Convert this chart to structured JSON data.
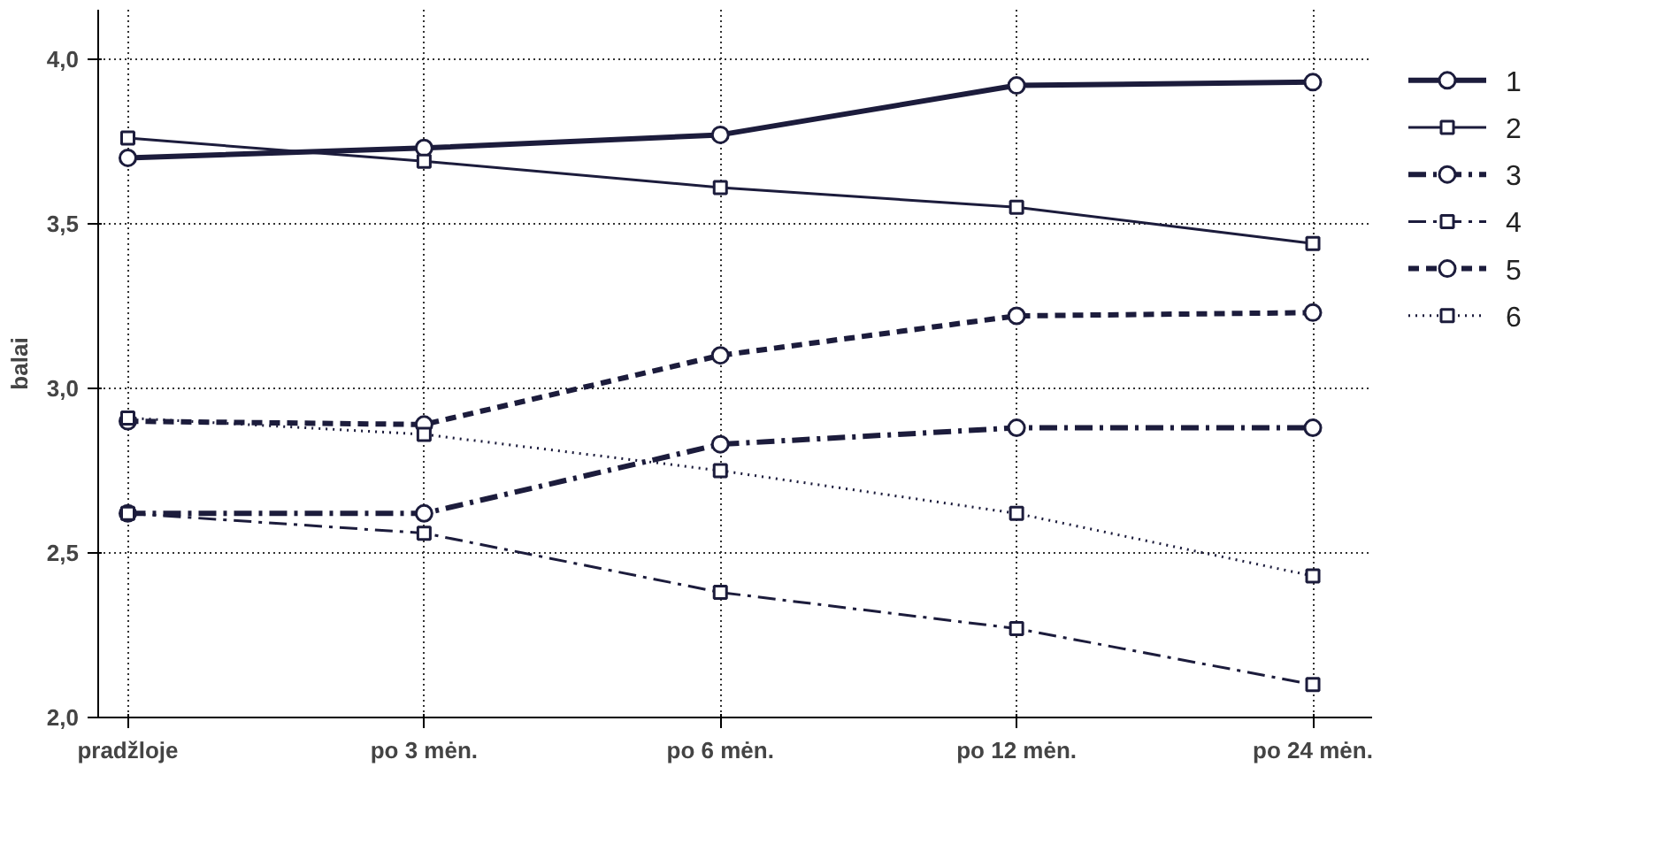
{
  "chart_data": {
    "type": "line",
    "ylabel": "balai",
    "categories": [
      "pradžloje",
      "po 3 mėn.",
      "po 6 mėn.",
      "po 12 mėn.",
      "po 24 mėn."
    ],
    "ylim": [
      2.0,
      4.15
    ],
    "yticks": [
      {
        "value": 2.0,
        "label": "2,0"
      },
      {
        "value": 2.5,
        "label": "2,5"
      },
      {
        "value": 3.0,
        "label": "3,0"
      },
      {
        "value": 3.5,
        "label": "3,5"
      },
      {
        "value": 4.0,
        "label": "4,0"
      }
    ],
    "grid": true,
    "legend": "right",
    "series": [
      {
        "name": "1",
        "color": "#1c1c3c",
        "marker": "circle",
        "line_style": "solid",
        "values": [
          3.7,
          3.73,
          3.77,
          3.92,
          3.93
        ]
      },
      {
        "name": "2",
        "color": "#1c1c3c",
        "marker": "square",
        "line_style": "solid",
        "values": [
          3.76,
          3.69,
          3.61,
          3.55,
          3.44
        ]
      },
      {
        "name": "3",
        "color": "#1c1c3c",
        "marker": "circle",
        "line_style": "dashdot",
        "values": [
          2.62,
          2.62,
          2.83,
          2.88,
          2.88
        ]
      },
      {
        "name": "4",
        "color": "#1c1c3c",
        "marker": "square",
        "line_style": "dashdot",
        "values": [
          2.62,
          2.56,
          2.38,
          2.27,
          2.1
        ]
      },
      {
        "name": "5",
        "color": "#1c1c3c",
        "marker": "circle",
        "line_style": "dashed",
        "values": [
          2.9,
          2.89,
          3.1,
          3.22,
          3.23
        ]
      },
      {
        "name": "6",
        "color": "#1c1c3c",
        "marker": "square",
        "line_style": "dotted",
        "values": [
          2.91,
          2.86,
          2.75,
          2.62,
          2.43
        ]
      }
    ]
  }
}
